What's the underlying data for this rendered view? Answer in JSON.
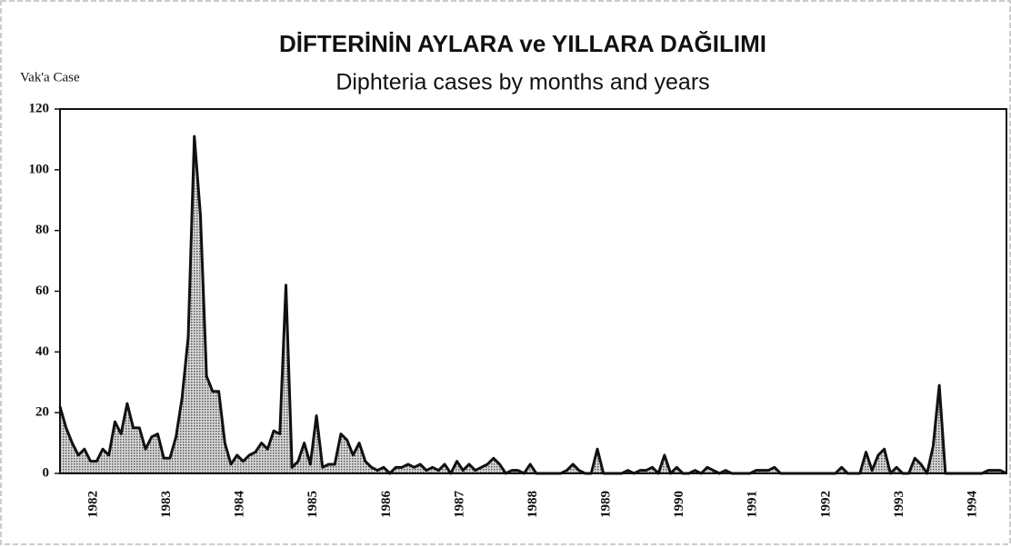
{
  "chart_data": {
    "type": "area",
    "title": "DİFTERİNİN AYLARA ve YILLARA DAĞILIMI",
    "subtitle": "Diphteria cases by months and years",
    "y_label": "Vak'a Case",
    "color": "#111111",
    "ylim": [
      0,
      120
    ],
    "yticks": [
      0,
      20,
      40,
      60,
      80,
      100,
      120
    ],
    "categories": [
      null,
      null,
      null,
      null,
      null,
      null,
      "1982",
      null,
      null,
      null,
      null,
      null,
      null,
      null,
      null,
      null,
      null,
      null,
      "1983",
      null,
      null,
      null,
      null,
      null,
      null,
      null,
      null,
      null,
      null,
      null,
      "1984",
      null,
      null,
      null,
      null,
      null,
      null,
      null,
      null,
      null,
      null,
      null,
      "1985",
      null,
      null,
      null,
      null,
      null,
      null,
      null,
      null,
      null,
      null,
      null,
      "1986",
      null,
      null,
      null,
      null,
      null,
      null,
      null,
      null,
      null,
      null,
      null,
      "1987",
      null,
      null,
      null,
      null,
      null,
      null,
      null,
      null,
      null,
      null,
      null,
      "1988",
      null,
      null,
      null,
      null,
      null,
      null,
      null,
      null,
      null,
      null,
      null,
      "1989",
      null,
      null,
      null,
      null,
      null,
      null,
      null,
      null,
      null,
      null,
      null,
      "1990",
      null,
      null,
      null,
      null,
      null,
      null,
      null,
      null,
      null,
      null,
      null,
      "1991",
      null,
      null,
      null,
      null,
      null,
      null,
      null,
      null,
      null,
      null,
      null,
      "1992",
      null,
      null,
      null,
      null,
      null,
      null,
      null,
      null,
      null,
      null,
      null,
      "1993",
      null,
      null,
      null,
      null,
      null,
      null,
      null,
      null,
      null,
      null,
      null,
      "1994",
      null,
      null,
      null,
      null,
      null
    ],
    "values": [
      22,
      15,
      10,
      6,
      8,
      4,
      4,
      8,
      6,
      17,
      13,
      23,
      15,
      15,
      8,
      12,
      13,
      5,
      5,
      12,
      25,
      45,
      111,
      85,
      32,
      27,
      27,
      10,
      3,
      6,
      4,
      6,
      7,
      10,
      8,
      14,
      13,
      62,
      2,
      4,
      10,
      3,
      19,
      2,
      3,
      3,
      13,
      11,
      6,
      10,
      4,
      2,
      1,
      2,
      0,
      2,
      2,
      3,
      2,
      3,
      1,
      2,
      1,
      3,
      0,
      4,
      1,
      3,
      1,
      2,
      3,
      5,
      3,
      0,
      1,
      1,
      0,
      3,
      0,
      0,
      0,
      0,
      0,
      1,
      3,
      1,
      0,
      0,
      8,
      0,
      0,
      0,
      0,
      1,
      0,
      1,
      1,
      2,
      0,
      6,
      0,
      2,
      0,
      0,
      1,
      0,
      2,
      1,
      0,
      1,
      0,
      0,
      0,
      0,
      1,
      1,
      1,
      2,
      0,
      0,
      0,
      0,
      0,
      0,
      0,
      0,
      0,
      0,
      2,
      0,
      0,
      0,
      7,
      1,
      6,
      8,
      0,
      2,
      0,
      0,
      5,
      3,
      0,
      9,
      29,
      0,
      0,
      0,
      0,
      0,
      0,
      0,
      1,
      1,
      1,
      0
    ]
  }
}
